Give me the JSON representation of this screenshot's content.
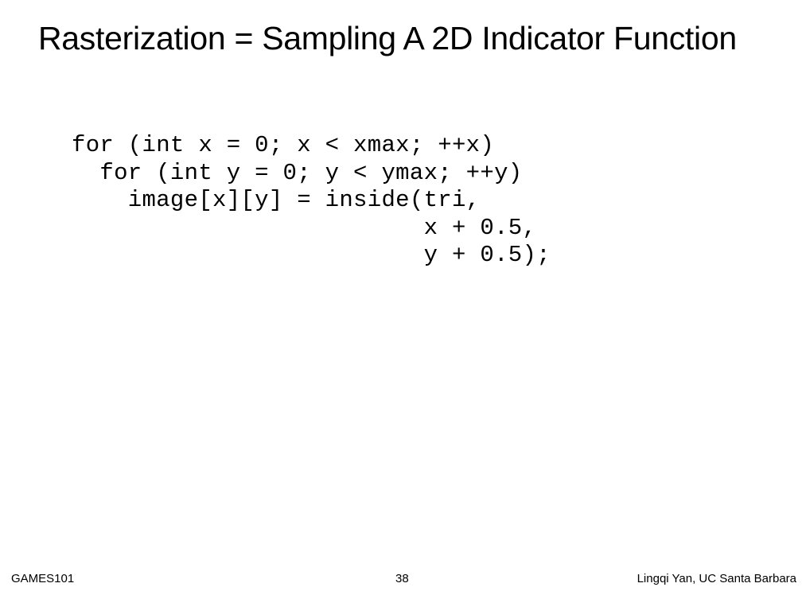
{
  "slide": {
    "title": "Rasterization = Sampling A 2D Indicator Function",
    "code_lines": [
      "for (int x = 0; x < xmax; ++x)",
      "  for (int y = 0; y < ymax; ++y)",
      "    image[x][y] = inside(tri,",
      "                         x + 0.5,",
      "                         y + 0.5);"
    ]
  },
  "footer": {
    "course": "GAMES101",
    "page_number": "38",
    "author": "Lingqi Yan, UC Santa Barbara"
  }
}
